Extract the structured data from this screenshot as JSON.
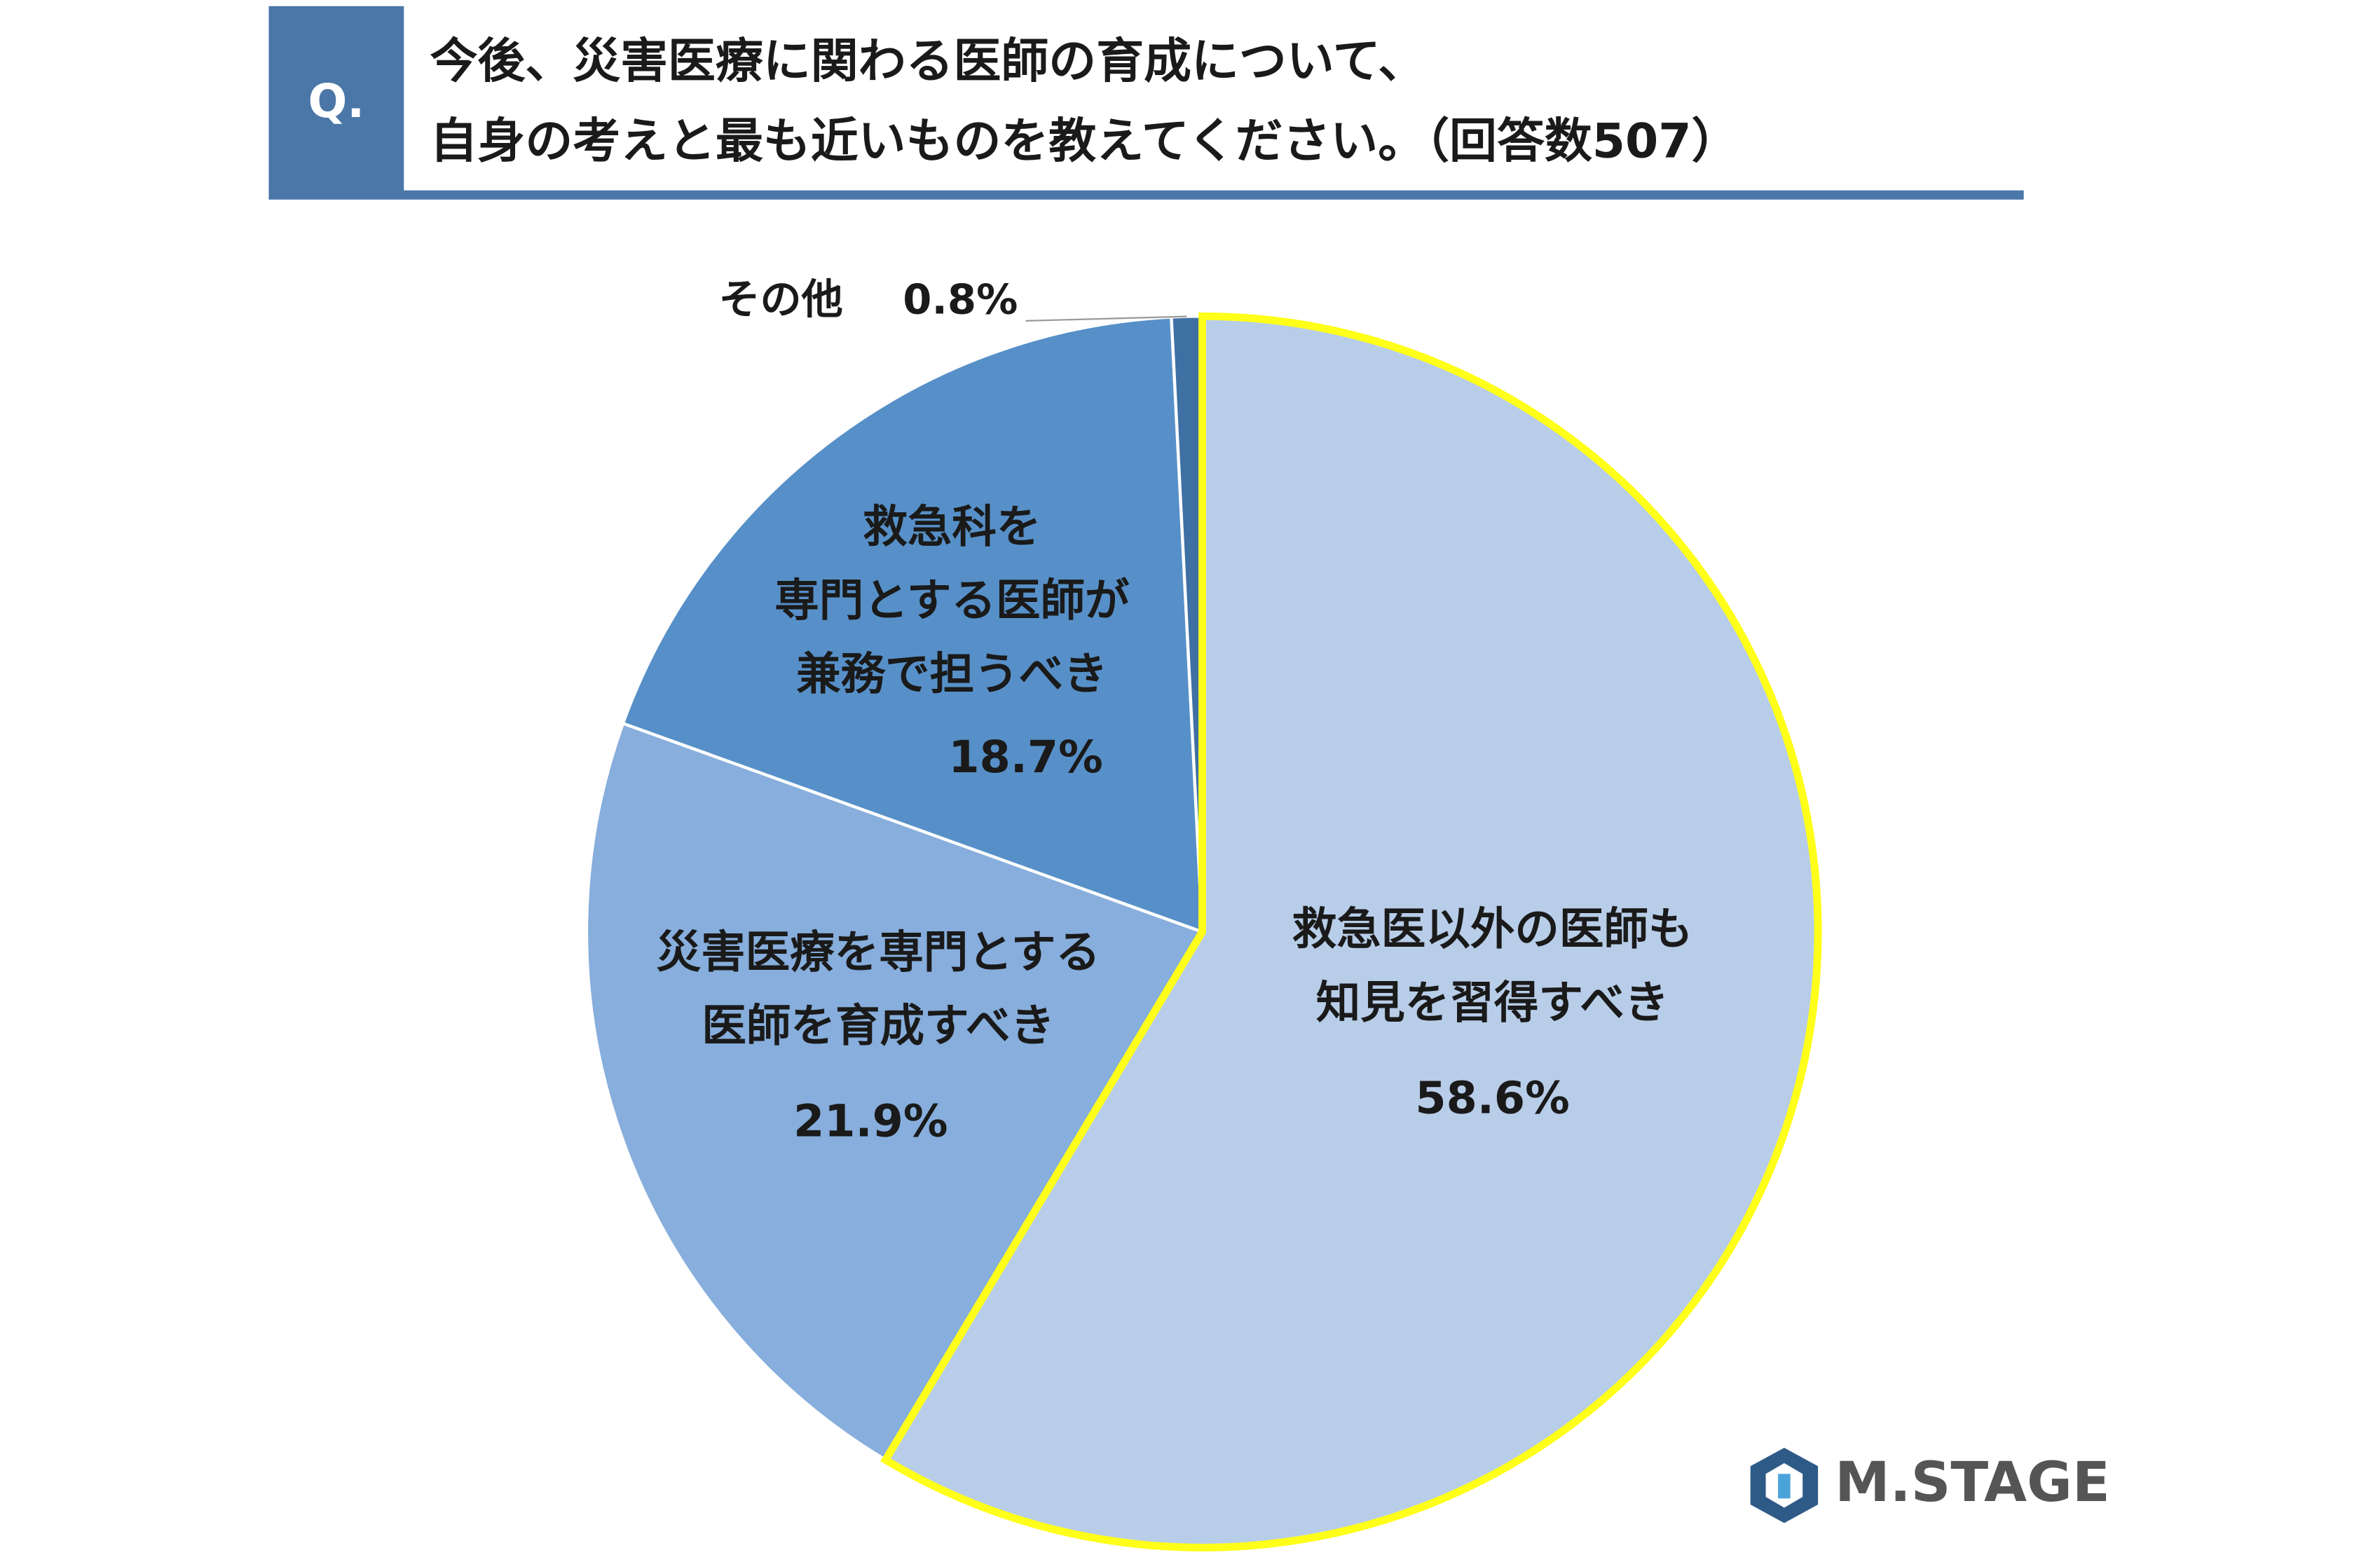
{
  "header": {
    "badge": "Q.",
    "title_lines": [
      "今後、災害医療に関わる医師の育成について、",
      "自身の考えと最も近いものを教えてください。（回答数507）"
    ]
  },
  "chart_data": {
    "type": "pie",
    "categories": [
      [
        "救急医以外の医師も",
        "知見を習得すべき"
      ],
      [
        "災害医療を専門とする",
        "医師を育成すべき"
      ],
      [
        "救急科を",
        "専門とする医師が",
        "兼務で担うべき"
      ],
      [
        "その他"
      ]
    ],
    "values": [
      58.6,
      21.9,
      18.7,
      0.8
    ],
    "value_labels": [
      "58.6%",
      "21.9%",
      "18.7%",
      "0.8%"
    ],
    "colors": [
      "#b8cde8",
      "#87aedc",
      "#5790c8",
      "#3f70a4"
    ],
    "highlight": {
      "index": 0,
      "color": "#ffff1a"
    }
  },
  "logo": "M.STAGE"
}
